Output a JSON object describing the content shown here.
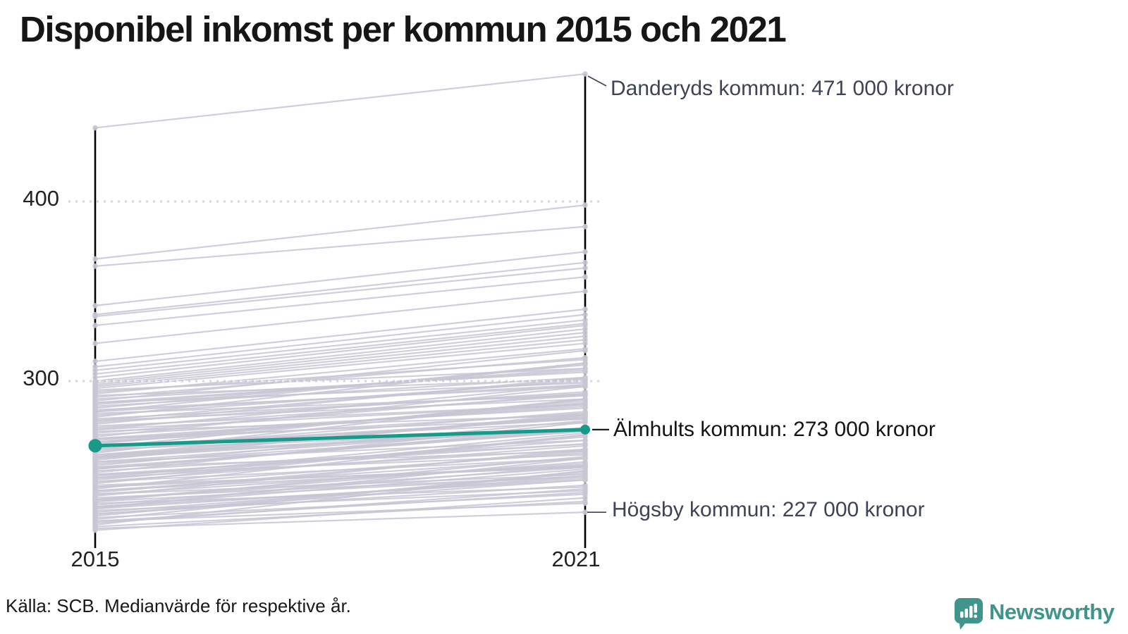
{
  "title": "Disponibel inkomst per kommun 2015 och 2021",
  "source": "Källa: SCB. Medianvärde för respektive år.",
  "logo": {
    "name": "Newsworthy"
  },
  "chart_data": {
    "type": "line",
    "variant": "slopegraph",
    "title": "Disponibel inkomst per kommun 2015 och 2021",
    "x": [
      "2015",
      "2021"
    ],
    "y_tick_labels": [
      "400",
      "300"
    ],
    "y_gridlines": [
      400,
      300
    ],
    "ylim": [
      210,
      480
    ],
    "grid": "dotted",
    "colors": {
      "highlight": "#179a89",
      "background_line": "#c8c6d3",
      "axis": "#000000",
      "annotation_text": "#3e4355",
      "grid": "#d9d8e2",
      "logo": "#3f958b"
    },
    "series": [
      {
        "name": "Älmhults kommun",
        "values": [
          264,
          273
        ],
        "color": "#179a89",
        "highlight": true
      }
    ],
    "annotations": [
      {
        "target": "Danderyds kommun",
        "label": "Danderyds kommun: 471 000 kronor",
        "year": "2021",
        "value": 471
      },
      {
        "target": "Älmhults kommun",
        "label": "Älmhults kommun: 273 000 kronor",
        "year": "2021",
        "value": 273
      },
      {
        "target": "Högsby kommun",
        "label": "Högsby kommun: 227 000 kronor",
        "year": "2021",
        "value": 227
      }
    ],
    "background_lines": [
      [
        441,
        471
      ],
      [
        368,
        398
      ],
      [
        364,
        386
      ],
      [
        342,
        372
      ],
      [
        337,
        366
      ],
      [
        336,
        363
      ],
      [
        331,
        358
      ],
      [
        321,
        350
      ],
      [
        311,
        340
      ],
      [
        308,
        337
      ],
      [
        306,
        334
      ],
      [
        304,
        332
      ],
      [
        302,
        331
      ],
      [
        300,
        329
      ],
      [
        299,
        327
      ],
      [
        298,
        325
      ],
      [
        297,
        323
      ],
      [
        296,
        321
      ],
      [
        295,
        307
      ],
      [
        294,
        312
      ],
      [
        293,
        318
      ],
      [
        292,
        301
      ],
      [
        291,
        313
      ],
      [
        290,
        305
      ],
      [
        289,
        317
      ],
      [
        288,
        299
      ],
      [
        287,
        307
      ],
      [
        286,
        302
      ],
      [
        285,
        309
      ],
      [
        284,
        297
      ],
      [
        283,
        310
      ],
      [
        282,
        292
      ],
      [
        281,
        300
      ],
      [
        280,
        310
      ],
      [
        279,
        293
      ],
      [
        278,
        301
      ],
      [
        277,
        294
      ],
      [
        276,
        302
      ],
      [
        275,
        287
      ],
      [
        274,
        292
      ],
      [
        273,
        298
      ],
      [
        272,
        281
      ],
      [
        271,
        293
      ],
      [
        270,
        285
      ],
      [
        269,
        297
      ],
      [
        268,
        279
      ],
      [
        267,
        287
      ],
      [
        266,
        282
      ],
      [
        265,
        289
      ],
      [
        264,
        277
      ],
      [
        263,
        290
      ],
      [
        262,
        272
      ],
      [
        261,
        280
      ],
      [
        260,
        290
      ],
      [
        259,
        273
      ],
      [
        258,
        281
      ],
      [
        257,
        274
      ],
      [
        256,
        282
      ],
      [
        255,
        267
      ],
      [
        254,
        272
      ],
      [
        253,
        278
      ],
      [
        252,
        261
      ],
      [
        251,
        273
      ],
      [
        250,
        265
      ],
      [
        249,
        277
      ],
      [
        248,
        259
      ],
      [
        247,
        267
      ],
      [
        246,
        262
      ],
      [
        245,
        269
      ],
      [
        244,
        257
      ],
      [
        243,
        270
      ],
      [
        242,
        252
      ],
      [
        241,
        260
      ],
      [
        240,
        270
      ],
      [
        239,
        253
      ],
      [
        238,
        261
      ],
      [
        237,
        254
      ],
      [
        236,
        262
      ],
      [
        235,
        247
      ],
      [
        234,
        252
      ],
      [
        233,
        258
      ],
      [
        232,
        241
      ],
      [
        231,
        253
      ],
      [
        230,
        245
      ],
      [
        229,
        257
      ],
      [
        228,
        239
      ],
      [
        227,
        247
      ],
      [
        226,
        242
      ],
      [
        225,
        249
      ],
      [
        224,
        237
      ],
      [
        223,
        250
      ],
      [
        222,
        232
      ],
      [
        221,
        240
      ],
      [
        220,
        250
      ],
      [
        219,
        233
      ],
      [
        218,
        227
      ],
      [
        217,
        235
      ],
      [
        262,
        283
      ],
      [
        255,
        274
      ],
      [
        248,
        265
      ],
      [
        241,
        253
      ],
      [
        234,
        255
      ],
      [
        258,
        273
      ],
      [
        251,
        274
      ],
      [
        244,
        264
      ],
      [
        237,
        248
      ],
      [
        230,
        251
      ],
      [
        226,
        245
      ],
      [
        222,
        238
      ],
      [
        246,
        271
      ],
      [
        239,
        257
      ],
      [
        233,
        247
      ],
      [
        229,
        246
      ],
      [
        252,
        272
      ],
      [
        257,
        281
      ],
      [
        263,
        279
      ],
      [
        268,
        286
      ],
      [
        273,
        287
      ],
      [
        278,
        290
      ],
      [
        283,
        298
      ],
      [
        288,
        306
      ],
      [
        266,
        288
      ],
      [
        259,
        280
      ]
    ]
  }
}
